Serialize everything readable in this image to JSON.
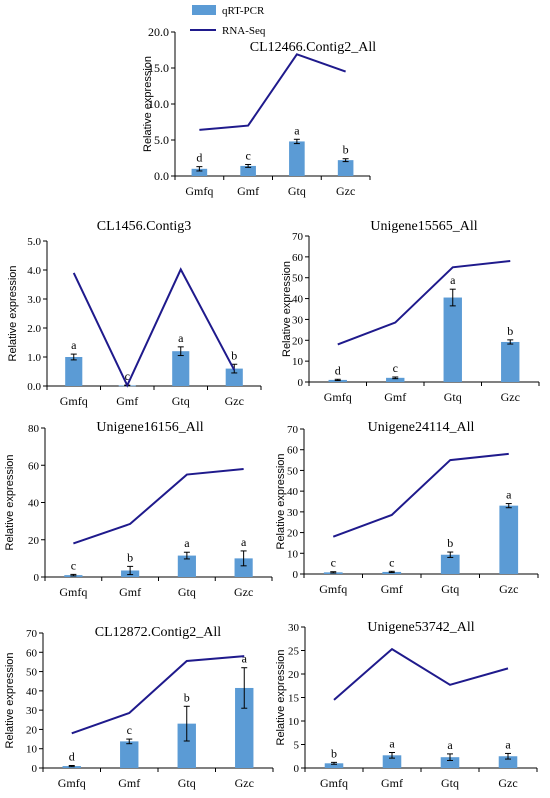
{
  "legend": {
    "bar_label": "qRT-PCR",
    "line_label": "RNA-Seq",
    "bar_color": "#5b9bd5",
    "line_color": "#1f1a8c"
  },
  "chart_data": [
    {
      "type": "bar",
      "title": "CL12466.Contig2_All",
      "ylabel": "Relative expression",
      "categories": [
        "Gmfq",
        "Gmf",
        "Gtq",
        "Gzc"
      ],
      "ylim": [
        0,
        20
      ],
      "yticks": [
        "0.0",
        "5.0",
        "10.0",
        "15.0",
        "20.0"
      ],
      "series": [
        {
          "name": "qRT-PCR",
          "kind": "bar",
          "values": [
            1.0,
            1.4,
            4.8,
            2.2
          ],
          "errors": [
            0.3,
            0.2,
            0.3,
            0.2
          ],
          "letters": [
            "d",
            "c",
            "a",
            "b"
          ]
        },
        {
          "name": "RNA-Seq",
          "kind": "line",
          "values": [
            6.4,
            7.0,
            16.9,
            14.5
          ]
        }
      ]
    },
    {
      "type": "bar",
      "title": "CL1456.Contig3",
      "ylabel": "Relative expression",
      "categories": [
        "Gmfq",
        "Gmf",
        "Gtq",
        "Gzc"
      ],
      "ylim": [
        0,
        5
      ],
      "yticks": [
        "0.0",
        "1.0",
        "2.0",
        "3.0",
        "4.0",
        "5.0"
      ],
      "series": [
        {
          "name": "qRT-PCR",
          "kind": "bar",
          "values": [
            1.0,
            0.02,
            1.2,
            0.6
          ],
          "errors": [
            0.1,
            0.01,
            0.15,
            0.15
          ],
          "letters": [
            "a",
            "c",
            "a",
            "b"
          ]
        },
        {
          "name": "RNA-Seq",
          "kind": "line",
          "values": [
            3.9,
            0.02,
            4.02,
            0.55
          ]
        }
      ]
    },
    {
      "type": "bar",
      "title": "Unigene15565_All",
      "ylabel": "Relative expression",
      "categories": [
        "Gmfq",
        "Gmf",
        "Gtq",
        "Gzc"
      ],
      "ylim": [
        0,
        70
      ],
      "yticks": [
        "0",
        "10",
        "20",
        "30",
        "40",
        "50",
        "60",
        "70"
      ],
      "series": [
        {
          "name": "qRT-PCR",
          "kind": "bar",
          "values": [
            1.0,
            2.0,
            40.5,
            19.2
          ],
          "errors": [
            0.3,
            0.4,
            4.0,
            1.0
          ],
          "letters": [
            "d",
            "c",
            "a",
            "b"
          ]
        },
        {
          "name": "RNA-Seq",
          "kind": "line",
          "values": [
            18.0,
            28.5,
            55.0,
            58.0
          ]
        }
      ]
    },
    {
      "type": "bar",
      "title": "Unigene16156_All",
      "ylabel": "Relative expression",
      "categories": [
        "Gmfq",
        "Gmf",
        "Gtq",
        "Gzc"
      ],
      "ylim": [
        0,
        80
      ],
      "yticks": [
        "0",
        "20",
        "40",
        "60",
        "80"
      ],
      "series": [
        {
          "name": "qRT-PCR",
          "kind": "bar",
          "values": [
            1.0,
            3.5,
            11.5,
            10.0
          ],
          "errors": [
            0.4,
            2.2,
            1.8,
            4.0
          ],
          "letters": [
            "c",
            "b",
            "a",
            "a"
          ]
        },
        {
          "name": "RNA-Seq",
          "kind": "line",
          "values": [
            18.0,
            28.5,
            55.0,
            58.0
          ]
        }
      ]
    },
    {
      "type": "bar",
      "title": "Unigene24114_All",
      "ylabel": "Relative expression",
      "categories": [
        "Gmfq",
        "Gmf",
        "Gtq",
        "Gzc"
      ],
      "ylim": [
        0,
        70
      ],
      "yticks": [
        "0",
        "10",
        "20",
        "30",
        "40",
        "50",
        "60",
        "70"
      ],
      "series": [
        {
          "name": "qRT-PCR",
          "kind": "bar",
          "values": [
            0.8,
            1.0,
            9.3,
            33.0
          ],
          "errors": [
            0.3,
            0.3,
            1.3,
            1.0
          ],
          "letters": [
            "c",
            "c",
            "b",
            "a"
          ]
        },
        {
          "name": "RNA-Seq",
          "kind": "line",
          "values": [
            18.0,
            28.5,
            55.0,
            58.0
          ]
        }
      ]
    },
    {
      "type": "bar",
      "title": "CL12872.Contig2_All",
      "ylabel": "Relative expression",
      "categories": [
        "Gmfq",
        "Gmf",
        "Gtq",
        "Gzc"
      ],
      "ylim": [
        0,
        70
      ],
      "yticks": [
        "0",
        "10",
        "20",
        "30",
        "40",
        "50",
        "60",
        "70"
      ],
      "series": [
        {
          "name": "qRT-PCR",
          "kind": "bar",
          "values": [
            1.0,
            13.8,
            23.0,
            41.5
          ],
          "errors": [
            0.3,
            1.2,
            9.0,
            10.5
          ],
          "letters": [
            "d",
            "c",
            "b",
            "a"
          ]
        },
        {
          "name": "RNA-Seq",
          "kind": "line",
          "values": [
            18.0,
            28.5,
            55.5,
            58.0
          ]
        }
      ]
    },
    {
      "type": "bar",
      "title": "Unigene53742_All",
      "ylabel": "Relative expression",
      "categories": [
        "Gmfq",
        "Gmf",
        "Gtq",
        "Gzc"
      ],
      "ylim": [
        0,
        30
      ],
      "yticks": [
        "0",
        "5",
        "10",
        "15",
        "20",
        "25",
        "30"
      ],
      "series": [
        {
          "name": "qRT-PCR",
          "kind": "bar",
          "values": [
            1.0,
            2.7,
            2.3,
            2.5
          ],
          "errors": [
            0.2,
            0.6,
            0.7,
            0.6
          ],
          "letters": [
            "b",
            "a",
            "a",
            "a"
          ]
        },
        {
          "name": "RNA-Seq",
          "kind": "line",
          "values": [
            14.5,
            25.3,
            17.7,
            21.2
          ]
        }
      ]
    }
  ]
}
